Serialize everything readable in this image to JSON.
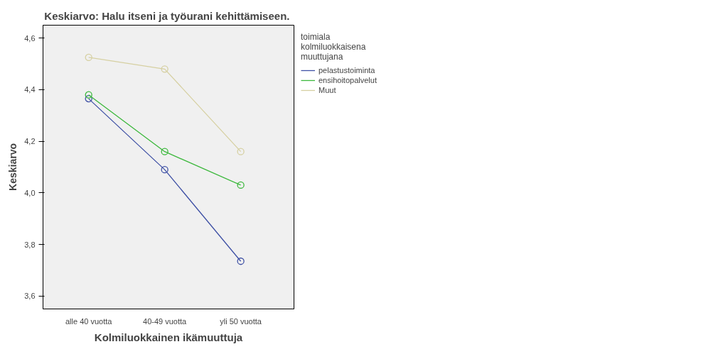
{
  "chart_data": {
    "type": "line",
    "title": "Keskiarvo:  Halu itseni ja työurani kehittämiseen.",
    "xlabel": "Kolmiluokkainen ikämuuttuja",
    "ylabel": "Keskiarvo",
    "legend_title": "toimiala kolmiluokkaisena muuttujana",
    "categories": [
      "alle 40 vuotta",
      "40-49 vuotta",
      "yli 50 vuotta"
    ],
    "series": [
      {
        "name": "pelastustoiminta",
        "color": "#3f51a5",
        "values": [
          4.365,
          4.09,
          3.735
        ]
      },
      {
        "name": "ensihoitopalvelut",
        "color": "#3cb83c",
        "values": [
          4.38,
          4.16,
          4.03
        ]
      },
      {
        "name": "Muut",
        "color": "#d6d0a2",
        "values": [
          4.525,
          4.48,
          4.16
        ]
      }
    ],
    "ylim": [
      3.55,
      4.65
    ],
    "yticks": [
      {
        "value": 3.6,
        "label": "3,6"
      },
      {
        "value": 3.8,
        "label": "3,8"
      },
      {
        "value": 4.0,
        "label": "4,0"
      },
      {
        "value": 4.2,
        "label": "4,2"
      },
      {
        "value": 4.4,
        "label": "4,4"
      },
      {
        "value": 4.6,
        "label": "4,6"
      }
    ],
    "grid": false,
    "legend": "top right",
    "marker": "circle",
    "line_style": "solid"
  }
}
